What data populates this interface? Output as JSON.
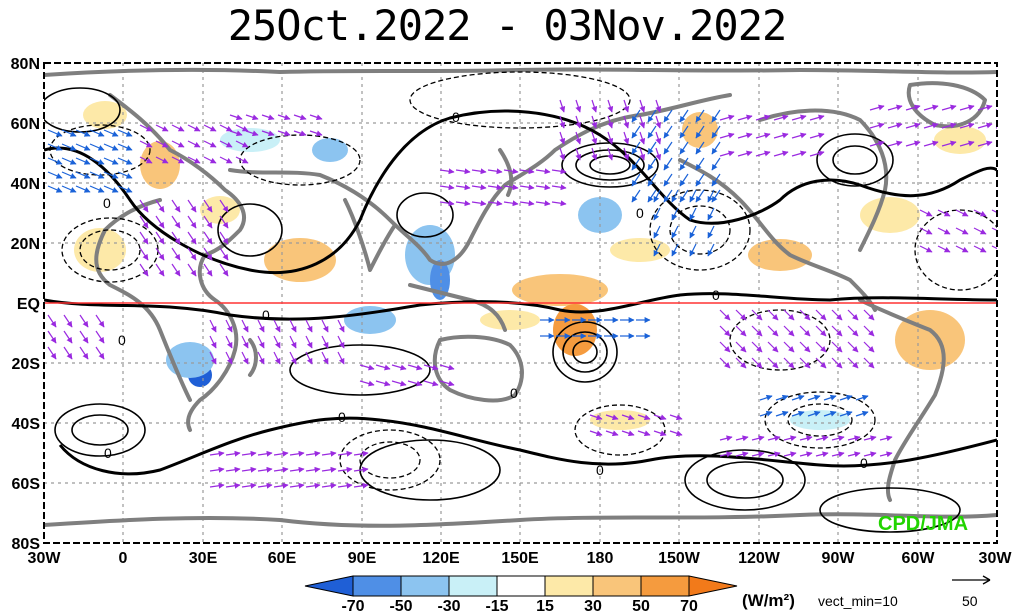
{
  "title": "25Oct.2022 - 03Nov.2022",
  "lat_labels": [
    "80N",
    "60N",
    "40N",
    "20N",
    "EQ",
    "20S",
    "40S",
    "60S",
    "80S"
  ],
  "lon_labels": [
    "30W",
    "0",
    "30E",
    "60E",
    "90E",
    "120E",
    "150E",
    "180",
    "150W",
    "120W",
    "90W",
    "60W",
    "30W"
  ],
  "colorbar": {
    "ticks": [
      "-70",
      "-50",
      "-30",
      "-15",
      "15",
      "30",
      "50",
      "70"
    ],
    "colors": [
      "#1f5fd6",
      "#4f8fe6",
      "#8cc4f0",
      "#c9f0f7",
      "#ffffff",
      "#fde9a8",
      "#f9c57a",
      "#f59b3e",
      "#f27a1a"
    ],
    "unit": "(W/m²)"
  },
  "vector_legend": {
    "label": "vect_min=10",
    "ref_value": "50"
  },
  "credit": "CPD/JMA",
  "contour_label": "0",
  "colors": {
    "equator": "#ff3333",
    "vectors": "#9a2ae0",
    "strong_vectors": "#1a62d8",
    "coast": "#7f7f7f"
  }
}
